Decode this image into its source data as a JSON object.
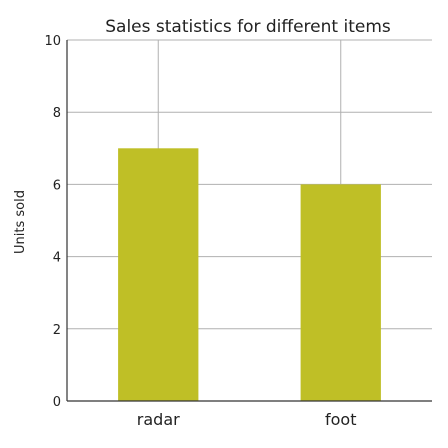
{
  "chart_data": {
    "type": "bar",
    "title": "Sales statistics for different items",
    "xlabel": "",
    "ylabel": "Units sold",
    "categories": [
      "radar",
      "foot"
    ],
    "values": [
      7,
      6
    ],
    "ylim": [
      0,
      10
    ],
    "yticks": [
      0,
      2,
      4,
      6,
      8,
      10
    ],
    "grid": true,
    "bar_color": "#bfbf26"
  }
}
